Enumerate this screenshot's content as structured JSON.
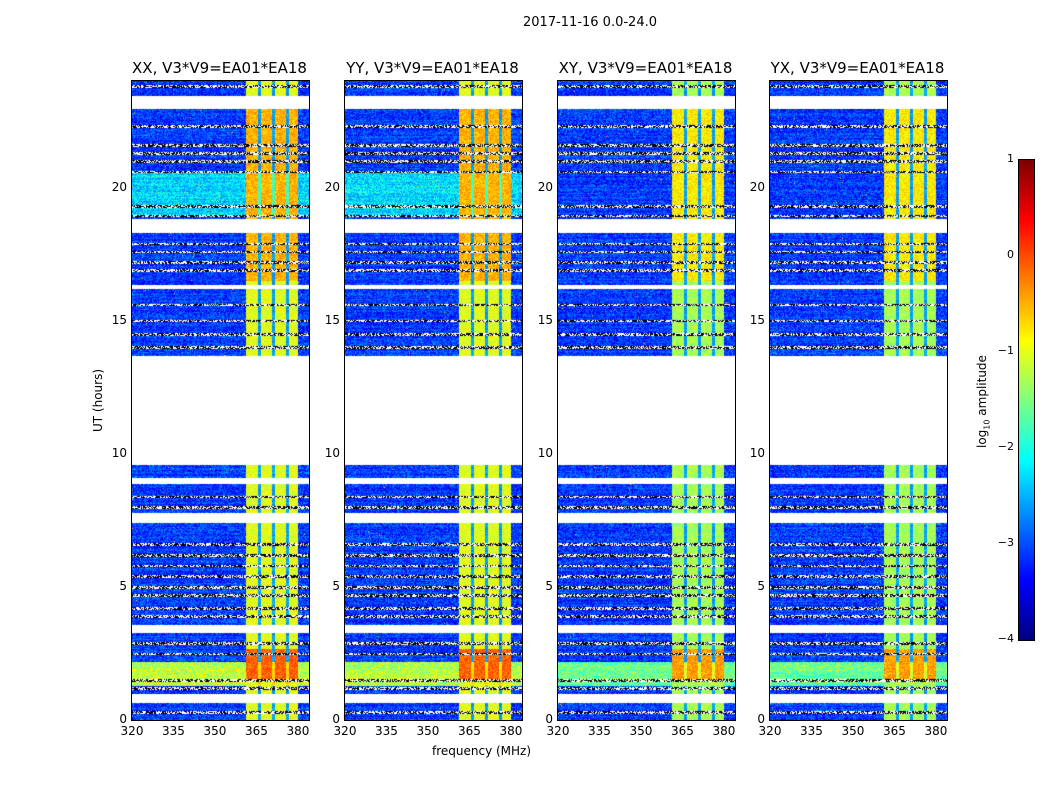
{
  "chart_data": {
    "type": "heatmap",
    "title": "2017-11-16 0.0-24.0",
    "xlabel": "frequency (MHz)",
    "ylabel": "UT (hours)",
    "xlim": [
      320,
      384
    ],
    "ylim": [
      0,
      24
    ],
    "xticks": [
      "320",
      "335",
      "350",
      "365",
      "380"
    ],
    "xtick_values": [
      320,
      335,
      350,
      365,
      380
    ],
    "yticks": [
      "0",
      "5",
      "10",
      "15",
      "20"
    ],
    "ytick_values": [
      0,
      5,
      10,
      15,
      20
    ],
    "colormap": "jet",
    "colorbar": {
      "label_main": "log",
      "label_sub": "10",
      "label_rest": " amplitude",
      "range": [
        -4,
        1
      ],
      "ticks": [
        "1",
        "0",
        "−1",
        "−2",
        "−3",
        "−4"
      ],
      "tick_values": [
        1,
        0,
        -1,
        -2,
        -3,
        -4
      ]
    },
    "panels": [
      {
        "title": "XX, V3*V9=EA01*EA18",
        "band_start": 361,
        "band_level": -1.0
      },
      {
        "title": "YY, V3*V9=EA01*EA18",
        "band_start": 361,
        "band_level": -1.0
      },
      {
        "title": "XY, V3*V9=EA01*EA18",
        "band_start": 361,
        "band_level": -1.3
      },
      {
        "title": "YX, V3*V9=EA01*EA18",
        "band_start": 361,
        "band_level": -1.3
      }
    ],
    "rfi_band_mhz": [
      361,
      380
    ],
    "band_gaps_mhz": [
      366,
      371,
      376
    ],
    "flagged_hours": [
      [
        22.95,
        23.45
      ],
      [
        18.3,
        18.84
      ],
      [
        13.7,
        9.6
      ],
      [
        0.64,
        1.0
      ],
      [
        16.2,
        16.35
      ],
      [
        8.9,
        9.1
      ],
      [
        7.4,
        7.8
      ],
      [
        3.3,
        3.6
      ]
    ],
    "flag_lines_hours": [
      23.8,
      22.3,
      21.6,
      21.3,
      21.0,
      20.6,
      19.3,
      18.95,
      17.9,
      17.6,
      17.2,
      16.9,
      15.6,
      15.0,
      14.5,
      14.0,
      8.4,
      8.0,
      6.6,
      6.2,
      5.8,
      5.4,
      5.0,
      4.7,
      4.2,
      3.9,
      2.9,
      2.5,
      1.5,
      1.2,
      0.3
    ],
    "background_level": -3.1
  }
}
